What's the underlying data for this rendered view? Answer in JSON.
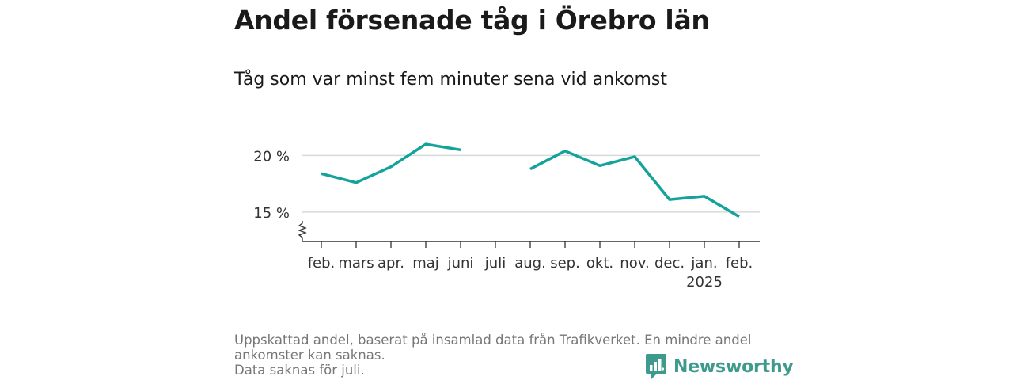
{
  "title": "Andel försenade tåg i Örebro län",
  "subtitle": "Tåg som var minst fem minuter sena vid ankomst",
  "footer": {
    "line1": "Uppskattad andel, baserat på insamlad data från Trafikverket. En mindre andel",
    "line2": "ankomster kan saknas.",
    "line3": "Data saknas för juli."
  },
  "brand": {
    "name": "Newsworthy",
    "icon": "newsworthy-logo-icon"
  },
  "colors": {
    "line": "#14a39a",
    "grid": "#d9d9d9",
    "axis": "#333333",
    "brand": "#3d9a8d"
  },
  "chart_data": {
    "type": "line",
    "categories": [
      "feb.",
      "mars",
      "apr.",
      "maj",
      "juni",
      "juli",
      "aug.",
      "sep.",
      "okt.",
      "nov.",
      "dec.",
      "jan.",
      "feb."
    ],
    "year_labels": [
      "",
      "",
      "",
      "",
      "",
      "",
      "",
      "",
      "",
      "",
      "",
      "2025",
      ""
    ],
    "series": [
      {
        "values": [
          18.4,
          17.6,
          19.0,
          21.0,
          20.5,
          null,
          18.8,
          20.4,
          19.1,
          19.9,
          16.1,
          16.4,
          14.6
        ]
      }
    ],
    "yticks": [
      15,
      20
    ],
    "ytick_labels": [
      "15 %",
      "20 %"
    ],
    "ylim": [
      12.4,
      21.5
    ],
    "axis_break": true,
    "grid": true,
    "xlabel": "",
    "ylabel": ""
  }
}
